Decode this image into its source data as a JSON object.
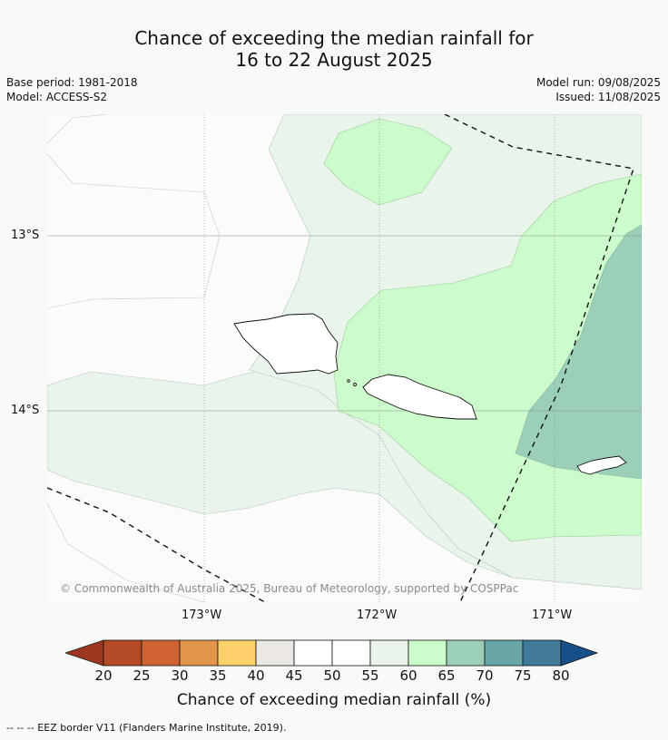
{
  "title": {
    "line1": "Chance of exceeding the median rainfall for",
    "line2": "16 to 22 August 2025"
  },
  "meta": {
    "base_period": "Base period: 1981-2018",
    "model": "Model: ACCESS-S2",
    "model_run": "Model run: 09/08/2025",
    "issued": "Issued: 11/08/2025"
  },
  "map": {
    "lat_labels": [
      "13°S",
      "14°S"
    ],
    "lon_labels": [
      "173°W",
      "172°W",
      "171°W"
    ],
    "copyright": "© Commonwealth of Australia 2025, Bureau of Meteorology, supported by COSPPac",
    "colors": {
      "c40_45": "#eceae6",
      "c55_60": "#e9f4ea",
      "c60_65": "#ccfccc",
      "c65_70": "#9ccfb8"
    }
  },
  "colorbar": {
    "ticks": [
      "20",
      "25",
      "30",
      "35",
      "40",
      "45",
      "50",
      "55",
      "60",
      "65",
      "70",
      "75",
      "80"
    ],
    "colors": [
      "#9c3820",
      "#b44a26",
      "#cf6432",
      "#e0954a",
      "#fdd06a",
      "#ebe8e3",
      "#ffffff",
      "#ffffff",
      "#e9f4ea",
      "#ccfccc",
      "#9ccfb8",
      "#6aa6a8",
      "#427a9c",
      "#174f88"
    ],
    "title": "Chance of exceeding median rainfall (%)"
  },
  "legend": {
    "eez": "--  --  -- EEZ border V11 (Flanders Marine Institute, 2019)."
  }
}
